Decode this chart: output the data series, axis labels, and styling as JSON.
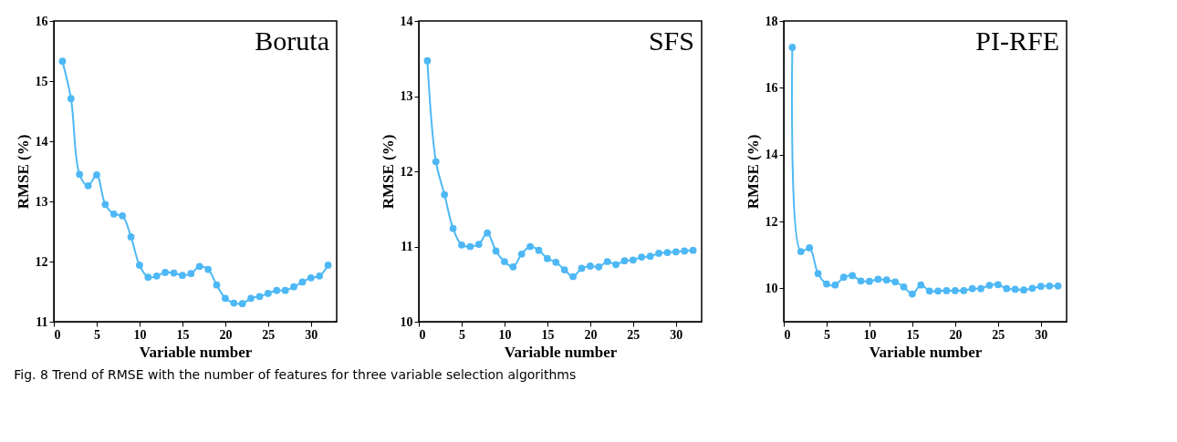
{
  "chart_data": [
    {
      "type": "line",
      "title": "Boruta",
      "xlabel": "Variable number",
      "ylabel": "RMSE (%)",
      "x": [
        1,
        2,
        3,
        4,
        5,
        6,
        7,
        8,
        9,
        10,
        11,
        12,
        13,
        14,
        15,
        16,
        17,
        18,
        19,
        20,
        21,
        22,
        23,
        24,
        25,
        26,
        27,
        28,
        29,
        30,
        31,
        32
      ],
      "series": [
        {
          "color": "#4db8f5",
          "values": [
            15.33,
            14.71,
            13.45,
            13.26,
            13.44,
            12.95,
            12.79,
            12.76,
            12.41,
            11.94,
            11.74,
            11.76,
            11.82,
            11.81,
            11.77,
            11.8,
            11.92,
            11.87,
            11.61,
            11.39,
            11.31,
            11.3,
            11.39,
            11.42,
            11.47,
            11.52,
            11.52,
            11.58,
            11.66,
            11.73,
            11.76,
            11.94
          ]
        }
      ],
      "xlim": [
        0,
        33
      ],
      "xticks": [
        0,
        5,
        10,
        15,
        20,
        25,
        30
      ],
      "ylim": [
        11,
        16
      ],
      "yticks": [
        11,
        12,
        13,
        14,
        15,
        16
      ],
      "grid": false,
      "marker": "circle",
      "line_style": "solid",
      "annotations": [
        "Fig. 8  Trend of RMSE with the number of features for three variable selection algorithms"
      ]
    },
    {
      "type": "line",
      "title": "SFS",
      "xlabel": "Variable number",
      "ylabel": "RMSE (%)",
      "x": [
        1,
        2,
        3,
        4,
        5,
        6,
        7,
        8,
        9,
        10,
        11,
        12,
        13,
        14,
        15,
        16,
        17,
        18,
        19,
        20,
        21,
        22,
        23,
        24,
        25,
        26,
        27,
        28,
        29,
        30,
        31,
        32
      ],
      "series": [
        {
          "color": "#4db8f5",
          "values": [
            13.47,
            12.13,
            11.69,
            11.24,
            11.02,
            11.0,
            11.03,
            11.18,
            10.94,
            10.8,
            10.73,
            10.9,
            11.0,
            10.95,
            10.84,
            10.79,
            10.69,
            10.6,
            10.71,
            10.74,
            10.73,
            10.8,
            10.76,
            10.81,
            10.82,
            10.86,
            10.87,
            10.91,
            10.92,
            10.93,
            10.94,
            10.95
          ]
        }
      ],
      "xlim": [
        0,
        33
      ],
      "xticks": [
        0,
        5,
        10,
        15,
        20,
        25,
        30
      ],
      "ylim": [
        10,
        14
      ],
      "yticks": [
        10,
        11,
        12,
        13,
        14
      ],
      "grid": false,
      "marker": "circle",
      "line_style": "solid"
    },
    {
      "type": "line",
      "title": "PI-RFE",
      "xlabel": "Variable number",
      "ylabel": "RMSE (%)",
      "x": [
        1,
        2,
        3,
        4,
        5,
        6,
        7,
        8,
        9,
        10,
        11,
        12,
        13,
        14,
        15,
        16,
        17,
        18,
        19,
        20,
        21,
        22,
        23,
        24,
        25,
        26,
        27,
        28,
        29,
        30,
        31,
        32
      ],
      "series": [
        {
          "color": "#4db8f5",
          "values": [
            17.21,
            11.1,
            11.21,
            10.44,
            10.13,
            10.1,
            10.33,
            10.38,
            10.22,
            10.21,
            10.27,
            10.25,
            10.19,
            10.04,
            9.83,
            10.1,
            9.92,
            9.92,
            9.93,
            9.93,
            9.93,
            9.99,
            9.99,
            10.09,
            10.11,
            9.99,
            9.97,
            9.95,
            10.0,
            10.06,
            10.07,
            10.07
          ]
        }
      ],
      "xlim": [
        0,
        33
      ],
      "xticks": [
        0,
        5,
        10,
        15,
        20,
        25,
        30
      ],
      "ylim": [
        9,
        18
      ],
      "yticks": [
        10,
        12,
        14,
        16,
        18
      ],
      "grid": false,
      "marker": "circle",
      "line_style": "solid"
    }
  ]
}
